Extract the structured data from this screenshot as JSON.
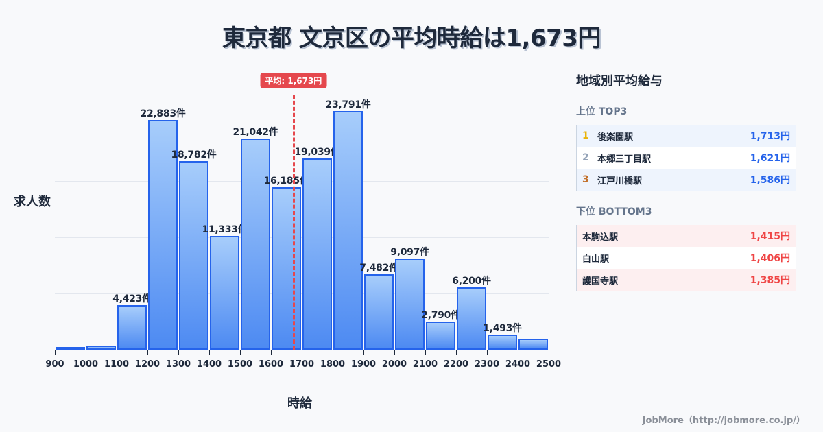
{
  "title": "東京都 文京区の平均時給は1,673円",
  "chart_data": {
    "type": "bar",
    "title": "東京都 文京区の平均時給は1,673円",
    "xlabel": "時給",
    "ylabel": "求人数",
    "categories": [
      "900-1000",
      "1000-1100",
      "1100-1200",
      "1200-1300",
      "1300-1400",
      "1400-1500",
      "1500-1600",
      "1600-1700",
      "1700-1800",
      "1800-1900",
      "1900-2000",
      "2000-2100",
      "2100-2200",
      "2200-2300",
      "2300-2400",
      "2400-2500"
    ],
    "bin_edges": [
      900,
      1000,
      1100,
      1200,
      1300,
      1400,
      1500,
      1600,
      1700,
      1800,
      1900,
      2000,
      2100,
      2200,
      2300,
      2400,
      2500
    ],
    "values": [
      120,
      400,
      4423,
      22883,
      18782,
      11333,
      21042,
      16185,
      19039,
      23791,
      7482,
      9097,
      2790,
      6200,
      1493,
      1100
    ],
    "labels": [
      "",
      "",
      "4,423件",
      "22,883件",
      "18,782件",
      "11,333件",
      "21,042件",
      "16,185件",
      "19,039件",
      "23,791件",
      "7,482件",
      "9,097件",
      "2,790件",
      "6,200件",
      "1,493件",
      ""
    ],
    "x_ticks": [
      "900",
      "1000",
      "1100",
      "1200",
      "1300",
      "1400",
      "1500",
      "1600",
      "1700",
      "1800",
      "1900",
      "2000",
      "2100",
      "2200",
      "2300",
      "2400",
      "2500"
    ],
    "ylim": [
      0,
      28000
    ],
    "grid": true,
    "average_line": {
      "x": 1673,
      "label": "平均: 1,673円",
      "color": "#e5484d"
    },
    "bar_color": "#2563eb"
  },
  "sidebar": {
    "title": "地域別平均給与",
    "top_title": "上位 TOP3",
    "top": [
      {
        "rank": "1",
        "name": "後楽園駅",
        "value": "1,713円",
        "rank_color": "#eab308"
      },
      {
        "rank": "2",
        "name": "本郷三丁目駅",
        "value": "1,621円",
        "rank_color": "#94a3b8"
      },
      {
        "rank": "3",
        "name": "江戸川橋駅",
        "value": "1,586円",
        "rank_color": "#c2702a"
      }
    ],
    "bottom_title": "下位 BOTTOM3",
    "bottom": [
      {
        "name": "本駒込駅",
        "value": "1,415円"
      },
      {
        "name": "白山駅",
        "value": "1,406円"
      },
      {
        "name": "護国寺駅",
        "value": "1,385円"
      }
    ]
  },
  "credit": "JobMore（http://jobmore.co.jp/）"
}
